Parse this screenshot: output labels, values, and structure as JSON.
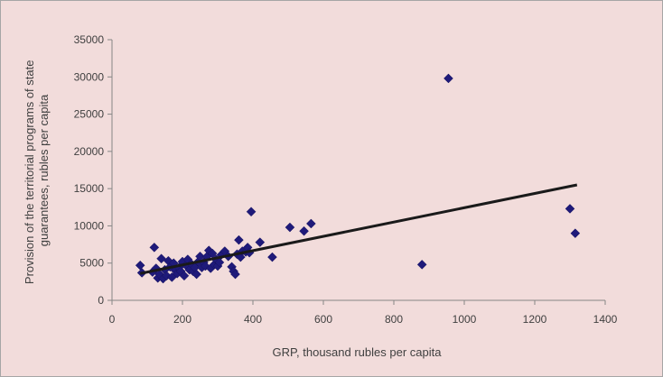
{
  "chart_data": {
    "type": "scatter",
    "xlabel": "GRP, thousand rubles per capita",
    "ylabel_lines": [
      "Provision of the territorial programs of state",
      "guarantees, rubles per capita"
    ],
    "xlim": [
      0,
      1400
    ],
    "ylim": [
      0,
      35000
    ],
    "x_ticks": [
      0,
      200,
      400,
      600,
      800,
      1000,
      1200,
      1400
    ],
    "y_ticks": [
      0,
      5000,
      10000,
      15000,
      20000,
      25000,
      30000,
      35000
    ],
    "grid": false,
    "legend": "none",
    "marker_color": "#1f1a7a",
    "trendline_color": "#1a1a1a",
    "background_color": "#f2dcdb",
    "trendline": [
      [
        80,
        3600
      ],
      [
        1320,
        15500
      ]
    ],
    "points": [
      [
        80,
        4700
      ],
      [
        85,
        3700
      ],
      [
        115,
        3800
      ],
      [
        120,
        7100
      ],
      [
        125,
        4300
      ],
      [
        130,
        3000
      ],
      [
        135,
        3500
      ],
      [
        140,
        5600
      ],
      [
        145,
        2900
      ],
      [
        150,
        4100
      ],
      [
        155,
        3300
      ],
      [
        160,
        5300
      ],
      [
        165,
        4500
      ],
      [
        170,
        3100
      ],
      [
        175,
        5000
      ],
      [
        180,
        4000
      ],
      [
        185,
        3600
      ],
      [
        190,
        4400
      ],
      [
        195,
        3900
      ],
      [
        200,
        5200
      ],
      [
        205,
        3300
      ],
      [
        210,
        4700
      ],
      [
        215,
        5500
      ],
      [
        220,
        4100
      ],
      [
        225,
        4900
      ],
      [
        230,
        3900
      ],
      [
        235,
        4400
      ],
      [
        240,
        3500
      ],
      [
        245,
        5200
      ],
      [
        250,
        5900
      ],
      [
        255,
        4400
      ],
      [
        260,
        5100
      ],
      [
        265,
        4600
      ],
      [
        270,
        5900
      ],
      [
        275,
        6700
      ],
      [
        280,
        4300
      ],
      [
        285,
        6300
      ],
      [
        290,
        4800
      ],
      [
        295,
        5500
      ],
      [
        300,
        4600
      ],
      [
        305,
        5100
      ],
      [
        310,
        6100
      ],
      [
        320,
        6600
      ],
      [
        330,
        5900
      ],
      [
        340,
        4500
      ],
      [
        345,
        3900
      ],
      [
        350,
        3500
      ],
      [
        355,
        6200
      ],
      [
        360,
        8100
      ],
      [
        365,
        5800
      ],
      [
        370,
        6600
      ],
      [
        380,
        6500
      ],
      [
        385,
        7100
      ],
      [
        390,
        6400
      ],
      [
        395,
        11900
      ],
      [
        420,
        7800
      ],
      [
        455,
        5800
      ],
      [
        505,
        9800
      ],
      [
        545,
        9300
      ],
      [
        565,
        10300
      ],
      [
        880,
        4800
      ],
      [
        955,
        29800
      ],
      [
        1300,
        12300
      ],
      [
        1315,
        9000
      ]
    ]
  }
}
